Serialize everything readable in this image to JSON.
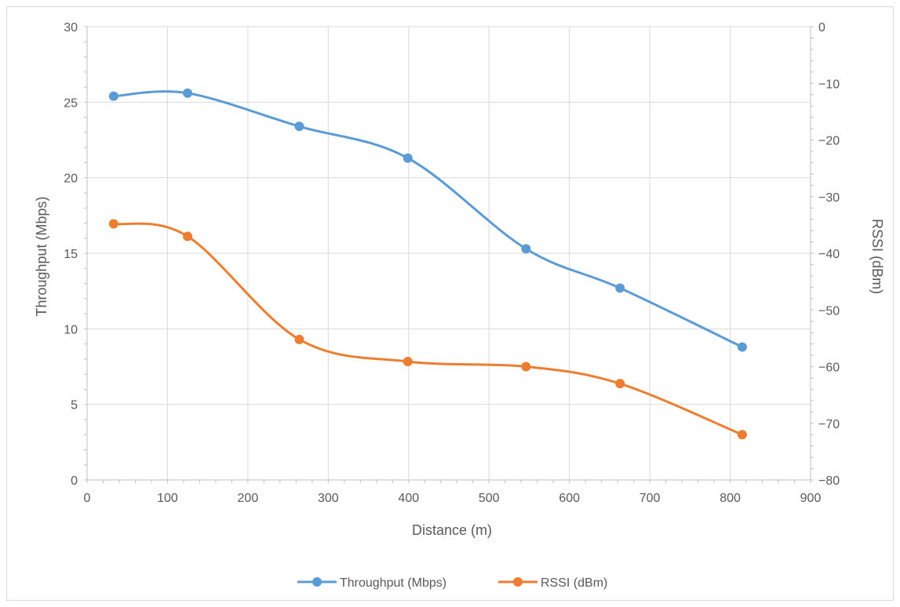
{
  "chart_data": {
    "type": "line",
    "smooth": true,
    "xlabel": "Distance (m)",
    "ylabel": "Throughput (Mbps)",
    "y2label": "RSSI (dBm)",
    "xlim": [
      0,
      900
    ],
    "ylim": [
      0,
      30
    ],
    "y2lim": [
      -80,
      0
    ],
    "x_ticks": [
      0,
      100,
      200,
      300,
      400,
      500,
      600,
      700,
      800,
      900
    ],
    "y_ticks": [
      0,
      5,
      10,
      15,
      20,
      25,
      30
    ],
    "y2_ticks": [
      0,
      -10,
      -20,
      -30,
      -40,
      -50,
      -60,
      -70,
      -80
    ],
    "grid": true,
    "legend_position": "bottom",
    "series": [
      {
        "name": "Throughput (Mbps)",
        "axis": "left",
        "color": "#5b9bd5",
        "x": [
          33,
          125,
          264,
          399,
          546,
          663,
          815
        ],
        "y": [
          25.4,
          25.6,
          23.4,
          21.3,
          15.3,
          12.7,
          8.8
        ]
      },
      {
        "name": "RSSI (dBm)",
        "axis": "right",
        "color": "#ed7d31",
        "x": [
          33,
          125,
          264,
          399,
          546,
          663,
          815
        ],
        "y": [
          -34.8,
          -37.0,
          -55.2,
          -59.1,
          -60.0,
          -63.0,
          -72.0
        ]
      }
    ]
  }
}
